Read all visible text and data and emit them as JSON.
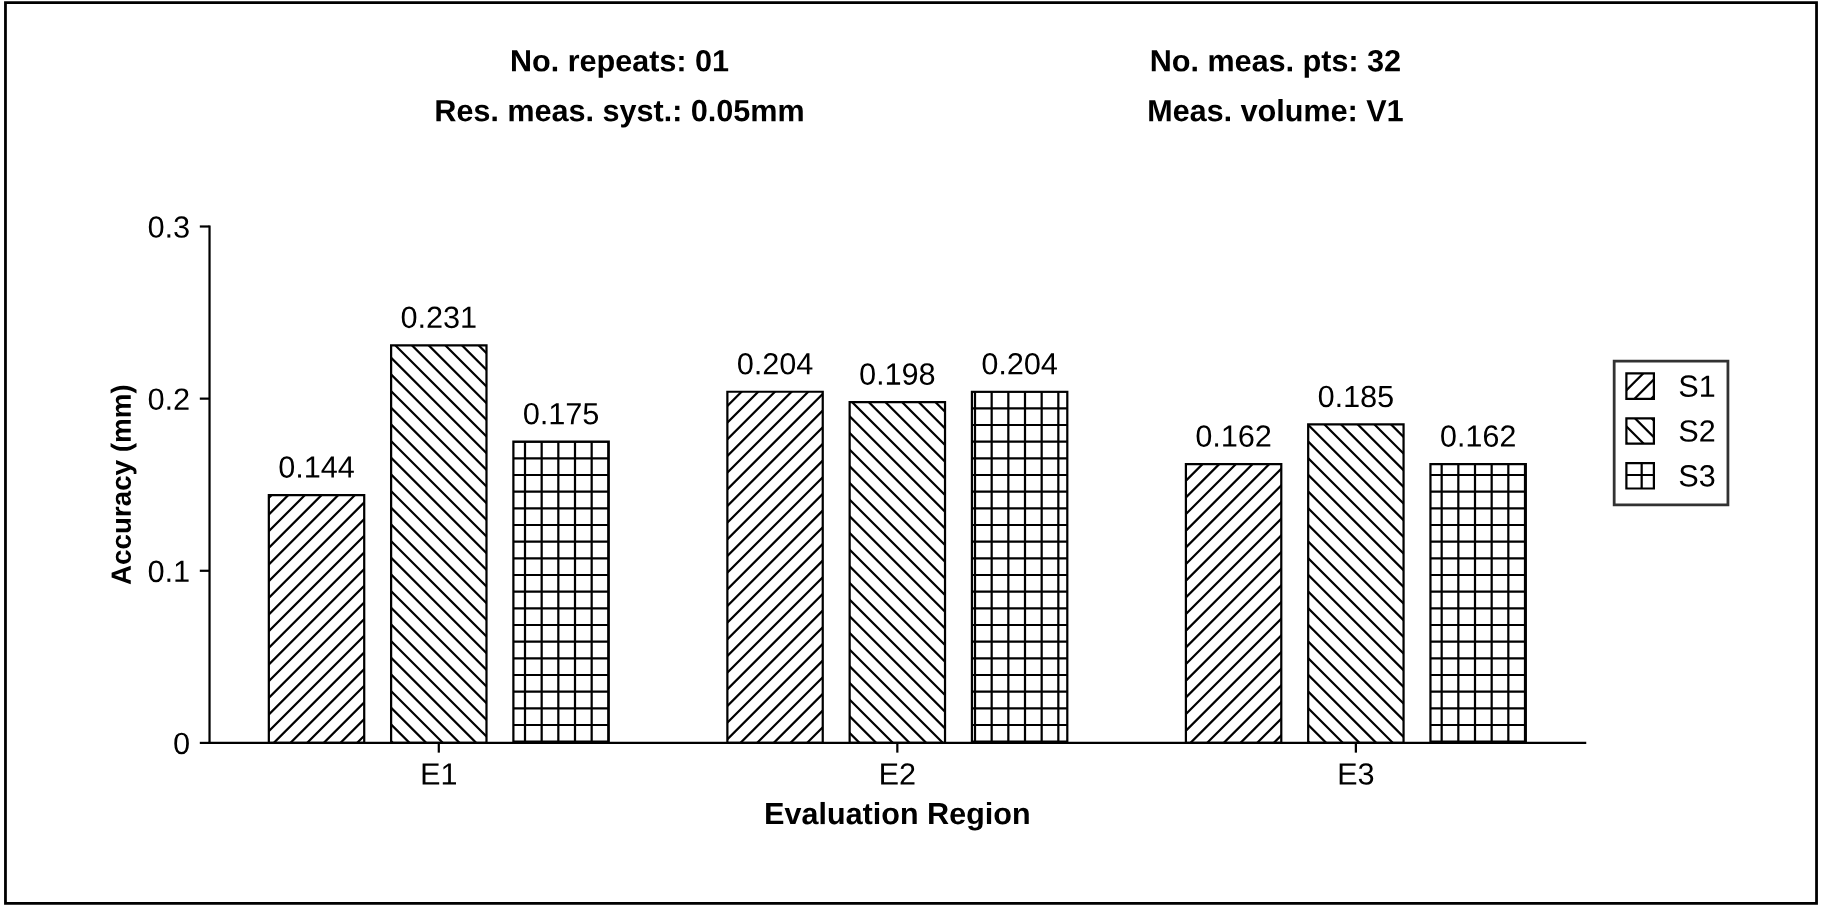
{
  "chart_data": {
    "type": "bar",
    "xlabel": "Evaluation Region",
    "ylabel": "Accuracy (mm)",
    "annotations": [
      "No. repeats: 01",
      "No. meas. pts: 32",
      "Res. meas. syst.: 0.05mm",
      "Meas. volume: V1"
    ],
    "categories": [
      "E1",
      "E2",
      "E3"
    ],
    "series": [
      {
        "name": "S1",
        "color": "#000000",
        "values": [
          0.144,
          0.204,
          0.162
        ]
      },
      {
        "name": "S2",
        "color": "#000000",
        "values": [
          0.231,
          0.198,
          0.185
        ]
      },
      {
        "name": "S3",
        "color": "#000000",
        "values": [
          0.175,
          0.204,
          0.162
        ]
      }
    ],
    "ylim": [
      0,
      0.3
    ],
    "yticks": [
      0,
      {
        "value": 0.1,
        "label": "0.1"
      },
      {
        "value": 0.2,
        "label": "0.2"
      },
      {
        "value": 0.3,
        "label": "0.3"
      }
    ],
    "data_labels": true,
    "legend": "right",
    "grid": false
  }
}
